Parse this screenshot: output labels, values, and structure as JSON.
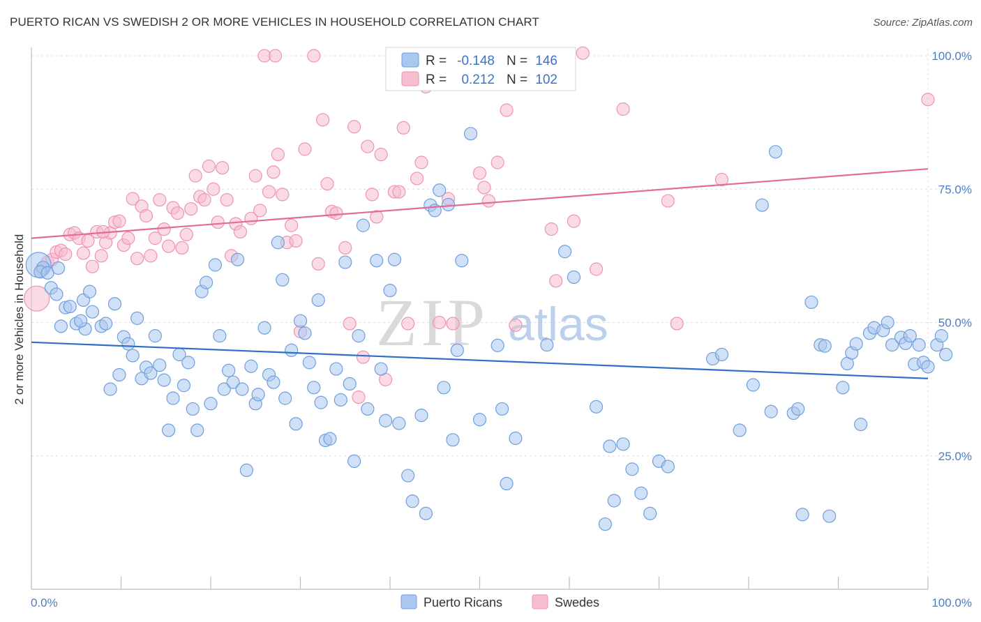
{
  "title": "PUERTO RICAN VS SWEDISH 2 OR MORE VEHICLES IN HOUSEHOLD CORRELATION CHART",
  "source": "Source: ZipAtlas.com",
  "watermark": {
    "part1": "ZIP",
    "part2": "atlas"
  },
  "colors": {
    "blue_fill": "#a9c7ef",
    "blue_stroke": "#6f9fdc",
    "blue_line": "#2f6fc8",
    "pink_fill": "#f6bcd0",
    "pink_stroke": "#ee93b2",
    "pink_line": "#e26b97",
    "grid": "#dcdcdc",
    "tick_label": "#4a7cc9"
  },
  "legend": {
    "rows": [
      {
        "r_label": "R =",
        "r_value": "-0.148",
        "n_label": "N =",
        "n_value": "146"
      },
      {
        "r_label": "R =",
        "r_value": "0.212",
        "n_label": "N =",
        "n_value": "102"
      }
    ]
  },
  "bottom_legend": {
    "items": [
      "Puerto Ricans",
      "Swedes"
    ]
  },
  "chart_data": {
    "type": "scatter",
    "xlabel": "",
    "ylabel": "2 or more Vehicles in Household",
    "xlim": [
      0,
      100
    ],
    "ylim": [
      0,
      100
    ],
    "x_tick_labels": [
      "0.0%",
      "100.0%"
    ],
    "y_tick_labels": [
      "100.0%",
      "75.0%",
      "50.0%",
      "25.0%"
    ],
    "y_tick_values": [
      100,
      75,
      50,
      25
    ],
    "grid": true,
    "legend_position": "top-center",
    "series": [
      {
        "name": "Puerto Ricans",
        "trend": {
          "x": [
            0,
            100
          ],
          "y": [
            46.3,
            39.5
          ]
        },
        "points": [
          [
            0.8,
            60.8
          ],
          [
            1.3,
            60.3
          ],
          [
            1.0,
            59.5
          ],
          [
            1.8,
            59.3
          ],
          [
            2.2,
            56.5
          ],
          [
            2.8,
            55.3
          ],
          [
            3.3,
            49.3
          ],
          [
            3.8,
            52.8
          ],
          [
            4.3,
            53.0
          ],
          [
            5.0,
            49.8
          ],
          [
            5.8,
            54.2
          ],
          [
            6.0,
            48.8
          ],
          [
            6.5,
            55.8
          ],
          [
            6.8,
            52.0
          ],
          [
            7.8,
            49.3
          ],
          [
            8.3,
            49.8
          ],
          [
            8.8,
            37.5
          ],
          [
            9.3,
            53.5
          ],
          [
            9.8,
            40.2
          ],
          [
            10.3,
            47.3
          ],
          [
            10.8,
            46.0
          ],
          [
            11.3,
            43.8
          ],
          [
            11.8,
            50.8
          ],
          [
            12.3,
            39.5
          ],
          [
            12.8,
            41.6
          ],
          [
            13.3,
            40.5
          ],
          [
            13.8,
            47.5
          ],
          [
            14.3,
            42.0
          ],
          [
            14.8,
            39.2
          ],
          [
            15.3,
            29.8
          ],
          [
            15.8,
            35.8
          ],
          [
            16.5,
            44.0
          ],
          [
            17.0,
            38.2
          ],
          [
            17.5,
            42.5
          ],
          [
            18.0,
            33.8
          ],
          [
            18.5,
            29.8
          ],
          [
            19.0,
            55.8
          ],
          [
            19.5,
            57.5
          ],
          [
            20.0,
            34.8
          ],
          [
            20.5,
            60.8
          ],
          [
            21.0,
            47.5
          ],
          [
            21.5,
            37.5
          ],
          [
            22.0,
            41.0
          ],
          [
            22.5,
            38.8
          ],
          [
            23.0,
            61.8
          ],
          [
            23.5,
            37.5
          ],
          [
            24.0,
            22.3
          ],
          [
            24.5,
            41.8
          ],
          [
            25.0,
            34.8
          ],
          [
            25.3,
            36.5
          ],
          [
            26.0,
            49.0
          ],
          [
            26.5,
            40.2
          ],
          [
            27.0,
            38.8
          ],
          [
            27.5,
            65.0
          ],
          [
            28.0,
            58.0
          ],
          [
            28.3,
            35.8
          ],
          [
            29.0,
            44.8
          ],
          [
            29.5,
            31.0
          ],
          [
            30.0,
            50.3
          ],
          [
            30.5,
            48.0
          ],
          [
            31.0,
            42.5
          ],
          [
            31.5,
            37.8
          ],
          [
            32.0,
            54.2
          ],
          [
            32.3,
            35.0
          ],
          [
            32.8,
            27.9
          ],
          [
            33.3,
            28.2
          ],
          [
            34.0,
            41.3
          ],
          [
            34.5,
            35.5
          ],
          [
            35.0,
            61.3
          ],
          [
            35.5,
            38.5
          ],
          [
            36.0,
            24.0
          ],
          [
            36.5,
            47.5
          ],
          [
            37.0,
            68.2
          ],
          [
            37.5,
            33.8
          ],
          [
            38.5,
            61.6
          ],
          [
            39.0,
            41.3
          ],
          [
            39.5,
            31.6
          ],
          [
            40.0,
            56.0
          ],
          [
            40.5,
            61.8
          ],
          [
            41.0,
            31.1
          ],
          [
            42.0,
            21.3
          ],
          [
            42.5,
            16.5
          ],
          [
            43.5,
            32.6
          ],
          [
            44.0,
            14.2
          ],
          [
            44.5,
            72.0
          ],
          [
            45.0,
            71.0
          ],
          [
            45.5,
            74.8
          ],
          [
            46.0,
            37.8
          ],
          [
            46.5,
            72.1
          ],
          [
            47.0,
            28.0
          ],
          [
            47.5,
            44.8
          ],
          [
            48.0,
            61.6
          ],
          [
            49.0,
            85.4
          ],
          [
            50.0,
            31.8
          ],
          [
            52.0,
            45.7
          ],
          [
            52.5,
            33.8
          ],
          [
            53.0,
            19.8
          ],
          [
            54.0,
            28.3
          ],
          [
            57.5,
            45.8
          ],
          [
            59.5,
            63.3
          ],
          [
            60.5,
            58.5
          ],
          [
            63.0,
            34.2
          ],
          [
            64.0,
            12.2
          ],
          [
            64.5,
            26.8
          ],
          [
            65.0,
            16.6
          ],
          [
            66.0,
            27.2
          ],
          [
            67.0,
            22.5
          ],
          [
            68.0,
            18.0
          ],
          [
            69.0,
            14.2
          ],
          [
            70.0,
            24.0
          ],
          [
            71.0,
            23.0
          ],
          [
            76.0,
            43.2
          ],
          [
            77.0,
            44.0
          ],
          [
            79.0,
            29.8
          ],
          [
            80.5,
            38.3
          ],
          [
            81.5,
            72.0
          ],
          [
            82.5,
            33.3
          ],
          [
            83.0,
            82.0
          ],
          [
            85.0,
            33.0
          ],
          [
            85.5,
            33.8
          ],
          [
            86.0,
            14.0
          ],
          [
            87.0,
            53.8
          ],
          [
            88.0,
            45.8
          ],
          [
            88.5,
            45.6
          ],
          [
            89.0,
            13.7
          ],
          [
            90.5,
            37.8
          ],
          [
            91.0,
            42.3
          ],
          [
            91.5,
            44.3
          ],
          [
            92.0,
            46.0
          ],
          [
            92.5,
            30.9
          ],
          [
            93.5,
            48.0
          ],
          [
            94.0,
            49.0
          ],
          [
            95.0,
            48.5
          ],
          [
            95.5,
            50.0
          ],
          [
            96.0,
            45.8
          ],
          [
            97.0,
            47.2
          ],
          [
            97.5,
            46.1
          ],
          [
            98.0,
            47.5
          ],
          [
            98.5,
            42.2
          ],
          [
            99.0,
            45.8
          ],
          [
            99.5,
            42.5
          ],
          [
            100.0,
            41.7
          ],
          [
            101.0,
            45.8
          ],
          [
            101.5,
            47.5
          ],
          [
            102.0,
            44.0
          ],
          [
            3.0,
            60.2
          ],
          [
            5.5,
            50.3
          ]
        ]
      },
      {
        "name": "Swedes",
        "trend": {
          "x": [
            0,
            100
          ],
          "y": [
            65.8,
            78.8
          ]
        },
        "points": [
          [
            0.6,
            54.5
          ],
          [
            1.2,
            59.8
          ],
          [
            1.8,
            61.3
          ],
          [
            2.3,
            61.8
          ],
          [
            2.8,
            63.2
          ],
          [
            3.3,
            63.5
          ],
          [
            3.8,
            62.8
          ],
          [
            4.3,
            66.5
          ],
          [
            4.8,
            66.8
          ],
          [
            5.3,
            65.8
          ],
          [
            5.8,
            63.0
          ],
          [
            6.3,
            65.3
          ],
          [
            6.8,
            60.5
          ],
          [
            7.3,
            67.0
          ],
          [
            7.8,
            62.5
          ],
          [
            8.3,
            65.0
          ],
          [
            8.8,
            66.8
          ],
          [
            9.3,
            68.8
          ],
          [
            9.8,
            69.0
          ],
          [
            10.3,
            64.5
          ],
          [
            10.8,
            65.8
          ],
          [
            11.3,
            73.2
          ],
          [
            11.8,
            62.0
          ],
          [
            12.3,
            71.8
          ],
          [
            12.8,
            70.0
          ],
          [
            13.3,
            62.5
          ],
          [
            13.8,
            65.8
          ],
          [
            14.3,
            73.0
          ],
          [
            14.8,
            67.5
          ],
          [
            15.3,
            64.3
          ],
          [
            15.8,
            71.5
          ],
          [
            16.3,
            70.5
          ],
          [
            16.8,
            64.0
          ],
          [
            17.3,
            66.5
          ],
          [
            17.8,
            71.3
          ],
          [
            18.3,
            77.5
          ],
          [
            18.8,
            73.6
          ],
          [
            19.3,
            73.0
          ],
          [
            19.8,
            79.3
          ],
          [
            20.3,
            75.0
          ],
          [
            20.8,
            68.8
          ],
          [
            21.3,
            79.0
          ],
          [
            21.8,
            73.0
          ],
          [
            22.3,
            62.5
          ],
          [
            22.8,
            68.5
          ],
          [
            23.3,
            67.0
          ],
          [
            24.5,
            69.5
          ],
          [
            25.0,
            77.5
          ],
          [
            25.5,
            71.0
          ],
          [
            26.0,
            100.0
          ],
          [
            26.5,
            74.5
          ],
          [
            27.0,
            78.2
          ],
          [
            27.5,
            81.5
          ],
          [
            28.0,
            74.0
          ],
          [
            28.5,
            65.0
          ],
          [
            29.0,
            68.2
          ],
          [
            29.5,
            65.3
          ],
          [
            30.0,
            48.3
          ],
          [
            30.5,
            82.5
          ],
          [
            31.5,
            100.0
          ],
          [
            32.0,
            61.0
          ],
          [
            32.5,
            88.0
          ],
          [
            33.0,
            76.0
          ],
          [
            33.5,
            70.8
          ],
          [
            34.0,
            70.5
          ],
          [
            35.0,
            64.0
          ],
          [
            35.5,
            49.8
          ],
          [
            36.0,
            86.7
          ],
          [
            37.0,
            43.5
          ],
          [
            37.5,
            83.0
          ],
          [
            38.0,
            74.0
          ],
          [
            38.5,
            69.8
          ],
          [
            39.0,
            81.5
          ],
          [
            39.5,
            39.3
          ],
          [
            40.5,
            74.5
          ],
          [
            41.0,
            74.5
          ],
          [
            41.5,
            86.5
          ],
          [
            42.0,
            49.8
          ],
          [
            43.0,
            77.0
          ],
          [
            43.5,
            80.0
          ],
          [
            44.0,
            94.2
          ],
          [
            45.5,
            50.0
          ],
          [
            46.5,
            73.2
          ],
          [
            47.0,
            49.8
          ],
          [
            50.0,
            78.0
          ],
          [
            50.5,
            75.3
          ],
          [
            51.0,
            72.8
          ],
          [
            52.0,
            80.0
          ],
          [
            53.0,
            89.8
          ],
          [
            54.0,
            49.5
          ],
          [
            58.0,
            67.5
          ],
          [
            58.5,
            57.8
          ],
          [
            60.5,
            69.0
          ],
          [
            63.0,
            60.0
          ],
          [
            66.0,
            90.0
          ],
          [
            71.0,
            72.8
          ],
          [
            72.0,
            49.8
          ],
          [
            77.0,
            76.8
          ],
          [
            100.0,
            91.8
          ],
          [
            27.2,
            100.0
          ],
          [
            36.5,
            36.0
          ],
          [
            8.0,
            67.0
          ],
          [
            61.5,
            100.5
          ]
        ]
      }
    ]
  }
}
